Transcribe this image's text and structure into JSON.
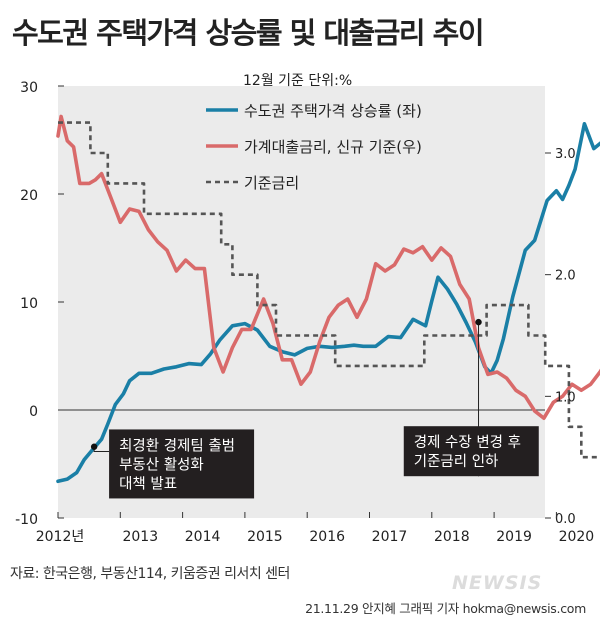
{
  "title": "수도권 주택가격 상승률 및 대출금리 추이",
  "source": "자료: 한국은행, 부동산114, 키움증권 리서치 센터",
  "credit": "21.11.29 안지혜 그래픽 기자 hokma@newsis.com",
  "watermark": "NEWSIS",
  "colors": {
    "housing": "#1a7fa6",
    "loan": "#d96a6a",
    "base": "#555555",
    "panel": "#ebebeb",
    "annotation_box": "#231f20"
  },
  "chart_data": {
    "type": "line",
    "unit_note": "12월 기준 단위:%",
    "x_ticks": [
      "2012년",
      "2013",
      "2014",
      "2015",
      "2016",
      "2017",
      "2018",
      "2019",
      "2020"
    ],
    "x_range": [
      2012.0,
      2021.0
    ],
    "y_left": {
      "range": [
        -10,
        30
      ],
      "ticks": [
        "30",
        "20",
        "10",
        "0",
        "-10"
      ],
      "tick_values": [
        30,
        20,
        10,
        0,
        -10
      ]
    },
    "y_right": {
      "range": [
        0.0,
        3.5
      ],
      "ticks": [
        "3.0",
        "2.0",
        "1.0",
        "0.0"
      ],
      "tick_values": [
        3.0,
        2.0,
        1.0,
        0.0
      ]
    },
    "series": [
      {
        "name": "수도권 주택가격 상승률 (좌)",
        "axis": "left",
        "style": "solid",
        "points": [
          [
            2012.0,
            -6.6
          ],
          [
            2012.15,
            -6.4
          ],
          [
            2012.3,
            -5.8
          ],
          [
            2012.42,
            -4.6
          ],
          [
            2012.55,
            -3.7
          ],
          [
            2012.7,
            -2.7
          ],
          [
            2012.8,
            -1.3
          ],
          [
            2012.92,
            0.5
          ],
          [
            2013.05,
            1.5
          ],
          [
            2013.15,
            2.7
          ],
          [
            2013.3,
            3.4
          ],
          [
            2013.5,
            3.4
          ],
          [
            2013.7,
            3.8
          ],
          [
            2013.9,
            4.0
          ],
          [
            2014.1,
            4.3
          ],
          [
            2014.3,
            4.2
          ],
          [
            2014.45,
            5.2
          ],
          [
            2014.6,
            6.5
          ],
          [
            2014.8,
            7.8
          ],
          [
            2015.0,
            8.0
          ],
          [
            2015.2,
            7.4
          ],
          [
            2015.4,
            5.9
          ],
          [
            2015.6,
            5.4
          ],
          [
            2015.8,
            5.1
          ],
          [
            2016.0,
            5.7
          ],
          [
            2016.2,
            5.9
          ],
          [
            2016.4,
            5.8
          ],
          [
            2016.6,
            5.9
          ],
          [
            2016.75,
            6.0
          ],
          [
            2016.9,
            5.9
          ],
          [
            2017.1,
            5.9
          ],
          [
            2017.3,
            6.8
          ],
          [
            2017.5,
            6.7
          ],
          [
            2017.7,
            8.4
          ],
          [
            2017.9,
            7.8
          ],
          [
            2018.0,
            10.1
          ],
          [
            2018.1,
            12.3
          ],
          [
            2018.25,
            11.2
          ],
          [
            2018.4,
            9.8
          ],
          [
            2018.55,
            8.1
          ],
          [
            2018.7,
            6.3
          ],
          [
            2018.85,
            4.0
          ],
          [
            2018.95,
            3.4
          ],
          [
            2019.05,
            4.6
          ],
          [
            2019.15,
            6.6
          ],
          [
            2019.3,
            10.5
          ],
          [
            2019.5,
            14.8
          ],
          [
            2019.65,
            15.7
          ],
          [
            2019.85,
            19.4
          ],
          [
            2020.0,
            20.3
          ],
          [
            2020.1,
            19.5
          ],
          [
            2020.2,
            20.8
          ],
          [
            2020.3,
            22.3
          ],
          [
            2020.45,
            26.5
          ],
          [
            2020.6,
            24.2
          ],
          [
            2020.75,
            24.9
          ]
        ]
      },
      {
        "name": "가계대출금리, 신규 기준(우)",
        "axis": "right",
        "style": "solid",
        "points": [
          [
            2012.0,
            3.14
          ],
          [
            2012.05,
            3.3
          ],
          [
            2012.15,
            3.1
          ],
          [
            2012.25,
            3.05
          ],
          [
            2012.35,
            2.75
          ],
          [
            2012.5,
            2.75
          ],
          [
            2012.6,
            2.78
          ],
          [
            2012.7,
            2.83
          ],
          [
            2012.85,
            2.63
          ],
          [
            2013.0,
            2.43
          ],
          [
            2013.15,
            2.54
          ],
          [
            2013.3,
            2.52
          ],
          [
            2013.45,
            2.37
          ],
          [
            2013.6,
            2.27
          ],
          [
            2013.75,
            2.2
          ],
          [
            2013.9,
            2.03
          ],
          [
            2014.05,
            2.12
          ],
          [
            2014.2,
            2.05
          ],
          [
            2014.35,
            2.05
          ],
          [
            2014.5,
            1.4
          ],
          [
            2014.65,
            1.2
          ],
          [
            2014.8,
            1.4
          ],
          [
            2014.95,
            1.55
          ],
          [
            2015.1,
            1.55
          ],
          [
            2015.3,
            1.8
          ],
          [
            2015.45,
            1.6
          ],
          [
            2015.6,
            1.3
          ],
          [
            2015.75,
            1.3
          ],
          [
            2015.9,
            1.1
          ],
          [
            2016.05,
            1.2
          ],
          [
            2016.2,
            1.45
          ],
          [
            2016.35,
            1.65
          ],
          [
            2016.5,
            1.75
          ],
          [
            2016.65,
            1.8
          ],
          [
            2016.8,
            1.65
          ],
          [
            2016.95,
            1.8
          ],
          [
            2017.1,
            2.09
          ],
          [
            2017.25,
            2.03
          ],
          [
            2017.4,
            2.08
          ],
          [
            2017.55,
            2.21
          ],
          [
            2017.7,
            2.18
          ],
          [
            2017.85,
            2.23
          ],
          [
            2018.0,
            2.12
          ],
          [
            2018.15,
            2.22
          ],
          [
            2018.3,
            2.15
          ],
          [
            2018.45,
            1.92
          ],
          [
            2018.6,
            1.8
          ],
          [
            2018.75,
            1.4
          ],
          [
            2018.9,
            1.18
          ],
          [
            2019.05,
            1.2
          ],
          [
            2019.2,
            1.15
          ],
          [
            2019.35,
            1.05
          ],
          [
            2019.5,
            1.0
          ],
          [
            2019.65,
            0.88
          ],
          [
            2019.8,
            0.82
          ],
          [
            2019.95,
            0.95
          ],
          [
            2020.1,
            1.0
          ],
          [
            2020.25,
            1.1
          ],
          [
            2020.4,
            1.05
          ],
          [
            2020.55,
            1.1
          ],
          [
            2020.7,
            1.2
          ],
          [
            2020.8,
            1.28
          ]
        ]
      },
      {
        "name": "기준금리",
        "axis": "right",
        "style": "dashed",
        "points": [
          [
            2012.0,
            3.25
          ],
          [
            2012.52,
            3.25
          ],
          [
            2012.52,
            3.0
          ],
          [
            2012.8,
            3.0
          ],
          [
            2012.8,
            2.75
          ],
          [
            2013.38,
            2.75
          ],
          [
            2013.38,
            2.5
          ],
          [
            2014.62,
            2.5
          ],
          [
            2014.62,
            2.25
          ],
          [
            2014.8,
            2.25
          ],
          [
            2014.8,
            2.0
          ],
          [
            2015.2,
            2.0
          ],
          [
            2015.2,
            1.75
          ],
          [
            2015.5,
            1.75
          ],
          [
            2015.5,
            1.5
          ],
          [
            2016.45,
            1.5
          ],
          [
            2016.45,
            1.25
          ],
          [
            2017.88,
            1.25
          ],
          [
            2017.88,
            1.5
          ],
          [
            2018.88,
            1.5
          ],
          [
            2018.88,
            1.75
          ],
          [
            2019.55,
            1.75
          ],
          [
            2019.55,
            1.5
          ],
          [
            2019.82,
            1.5
          ],
          [
            2019.82,
            1.25
          ],
          [
            2020.2,
            1.25
          ],
          [
            2020.2,
            0.75
          ],
          [
            2020.4,
            0.75
          ],
          [
            2020.4,
            0.5
          ],
          [
            2020.9,
            0.5
          ]
        ]
      }
    ],
    "annotations": [
      {
        "name": "annotation-choi",
        "lines": [
          "최경환 경제팀 출범",
          "부동산 활성화",
          "대책 발표"
        ],
        "target": [
          2012.58,
          -3.4
        ],
        "box_year": 2012.82,
        "box_y": -1.8,
        "axis": "left"
      },
      {
        "name": "annotation-policy",
        "lines": [
          "경제 수장 변경 후",
          "기준금리 인하"
        ],
        "target": [
          2018.75,
          1.61
        ],
        "box_year": 2017.55,
        "box_y": -1.5,
        "axis": "right"
      }
    ]
  }
}
